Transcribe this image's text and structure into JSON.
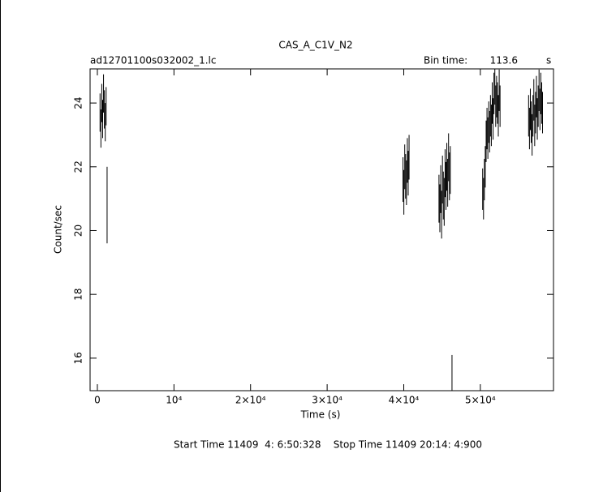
{
  "chart_data": {
    "type": "errorbar",
    "title": "CAS_A_C1V_N2",
    "subtitle": "ad12701100s032002_1.lc",
    "bin_time_label": "Bin time:",
    "bin_time": 113.6,
    "bin_time_unit": "s",
    "xlabel": "Time (s)",
    "ylabel": "Count/sec",
    "footer": "Start Time 11409  4: 6:50:328    Stop Time 11409 20:14: 4:900",
    "color": "#000000",
    "xlim": [
      -950,
      59550
    ],
    "ylim": [
      14.98,
      25.07
    ],
    "xticks": [
      0,
      {
        "value": 10000,
        "label": "10⁴"
      },
      {
        "value": 20000,
        "label": "2×10⁴"
      },
      {
        "value": 30000,
        "label": "3×10⁴"
      },
      {
        "value": 40000,
        "label": "4×10⁴"
      },
      {
        "value": 50000,
        "label": "5×10⁴"
      }
    ],
    "yticks": [
      16,
      18,
      20,
      22,
      24
    ],
    "x": [
      350,
      464,
      577,
      691,
      805,
      918,
      1032,
      1145,
      1270,
      39900,
      40014,
      40128,
      40241,
      40355,
      40469,
      40582,
      40696,
      44600,
      44714,
      44827,
      44941,
      45055,
      45168,
      45282,
      45396,
      45509,
      45623,
      45737,
      45850,
      45964,
      46078,
      46300,
      50300,
      50414,
      50528,
      50641,
      50755,
      50869,
      50982,
      51096,
      51210,
      51323,
      51437,
      51551,
      51664,
      51778,
      51892,
      52005,
      52119,
      52233,
      52346,
      52460,
      52573,
      56300,
      56414,
      56528,
      56641,
      56755,
      56869,
      56982,
      57096,
      57210,
      57323,
      57437,
      57551,
      57664,
      57778,
      57892,
      58005,
      58119
    ],
    "values": [
      23.7,
      23.2,
      24.0,
      23.5,
      24.3,
      23.8,
      23.4,
      23.9,
      20.8,
      21.6,
      21.2,
      22.0,
      21.7,
      21.5,
      22.2,
      21.8,
      22.3,
      21.0,
      20.7,
      21.3,
      20.5,
      21.6,
      21.1,
      20.9,
      21.8,
      21.4,
      22.0,
      21.5,
      22.3,
      21.7,
      21.9,
      15.3,
      21.3,
      21.0,
      21.6,
      22.0,
      22.8,
      23.2,
      22.9,
      23.4,
      23.1,
      23.6,
      23.3,
      24.0,
      23.5,
      24.3,
      24.6,
      23.9,
      24.2,
      24.0,
      23.6,
      24.4,
      23.9,
      23.6,
      23.2,
      23.8,
      23.4,
      23.0,
      23.6,
      24.1,
      23.3,
      23.7,
      24.2,
      23.5,
      23.9,
      24.4,
      23.8,
      24.3,
      24.0,
      23.7
    ],
    "errors": [
      0.6,
      0.6,
      0.6,
      0.6,
      0.6,
      0.6,
      0.6,
      0.6,
      1.2,
      0.7,
      0.7,
      0.7,
      0.7,
      0.7,
      0.7,
      0.7,
      0.7,
      0.75,
      0.75,
      0.75,
      0.75,
      0.75,
      0.75,
      0.75,
      0.75,
      0.75,
      0.75,
      0.75,
      0.75,
      0.75,
      0.75,
      0.8,
      0.65,
      0.65,
      0.65,
      0.65,
      0.65,
      0.65,
      0.65,
      0.65,
      0.65,
      0.65,
      0.65,
      0.65,
      0.65,
      0.65,
      0.65,
      0.65,
      0.65,
      0.65,
      0.65,
      0.65,
      0.65,
      0.65,
      0.65,
      0.65,
      0.65,
      0.65,
      0.65,
      0.65,
      0.65,
      0.65,
      0.65,
      0.65,
      0.65,
      0.65,
      0.65,
      0.65,
      0.65,
      0.65
    ]
  }
}
